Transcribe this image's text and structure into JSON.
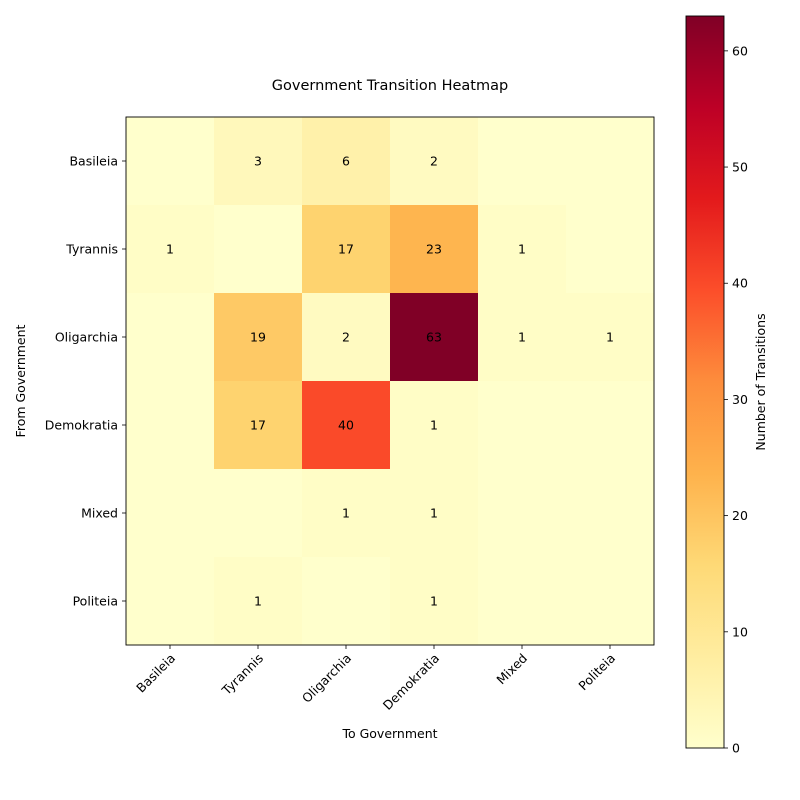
{
  "chart_data": {
    "type": "heatmap",
    "title": "Government Transition Heatmap",
    "xlabel": "To Government",
    "ylabel": "From Government",
    "x_categories": [
      "Basileia",
      "Tyrannis",
      "Oligarchia",
      "Demokratia",
      "Mixed",
      "Politeia"
    ],
    "y_categories": [
      "Basileia",
      "Tyrannis",
      "Oligarchia",
      "Demokratia",
      "Mixed",
      "Politeia"
    ],
    "values": [
      [
        0,
        3,
        6,
        2,
        0,
        0
      ],
      [
        1,
        0,
        17,
        23,
        1,
        0
      ],
      [
        0,
        19,
        2,
        63,
        1,
        1
      ],
      [
        0,
        17,
        40,
        1,
        0,
        0
      ],
      [
        0,
        0,
        1,
        1,
        0,
        0
      ],
      [
        0,
        1,
        0,
        1,
        0,
        0
      ]
    ],
    "colorbar": {
      "label": "Number of Transitions",
      "range": [
        0,
        63
      ],
      "ticks": [
        0,
        10,
        20,
        30,
        40,
        50,
        60
      ],
      "colormap": "YlOrRd"
    }
  }
}
